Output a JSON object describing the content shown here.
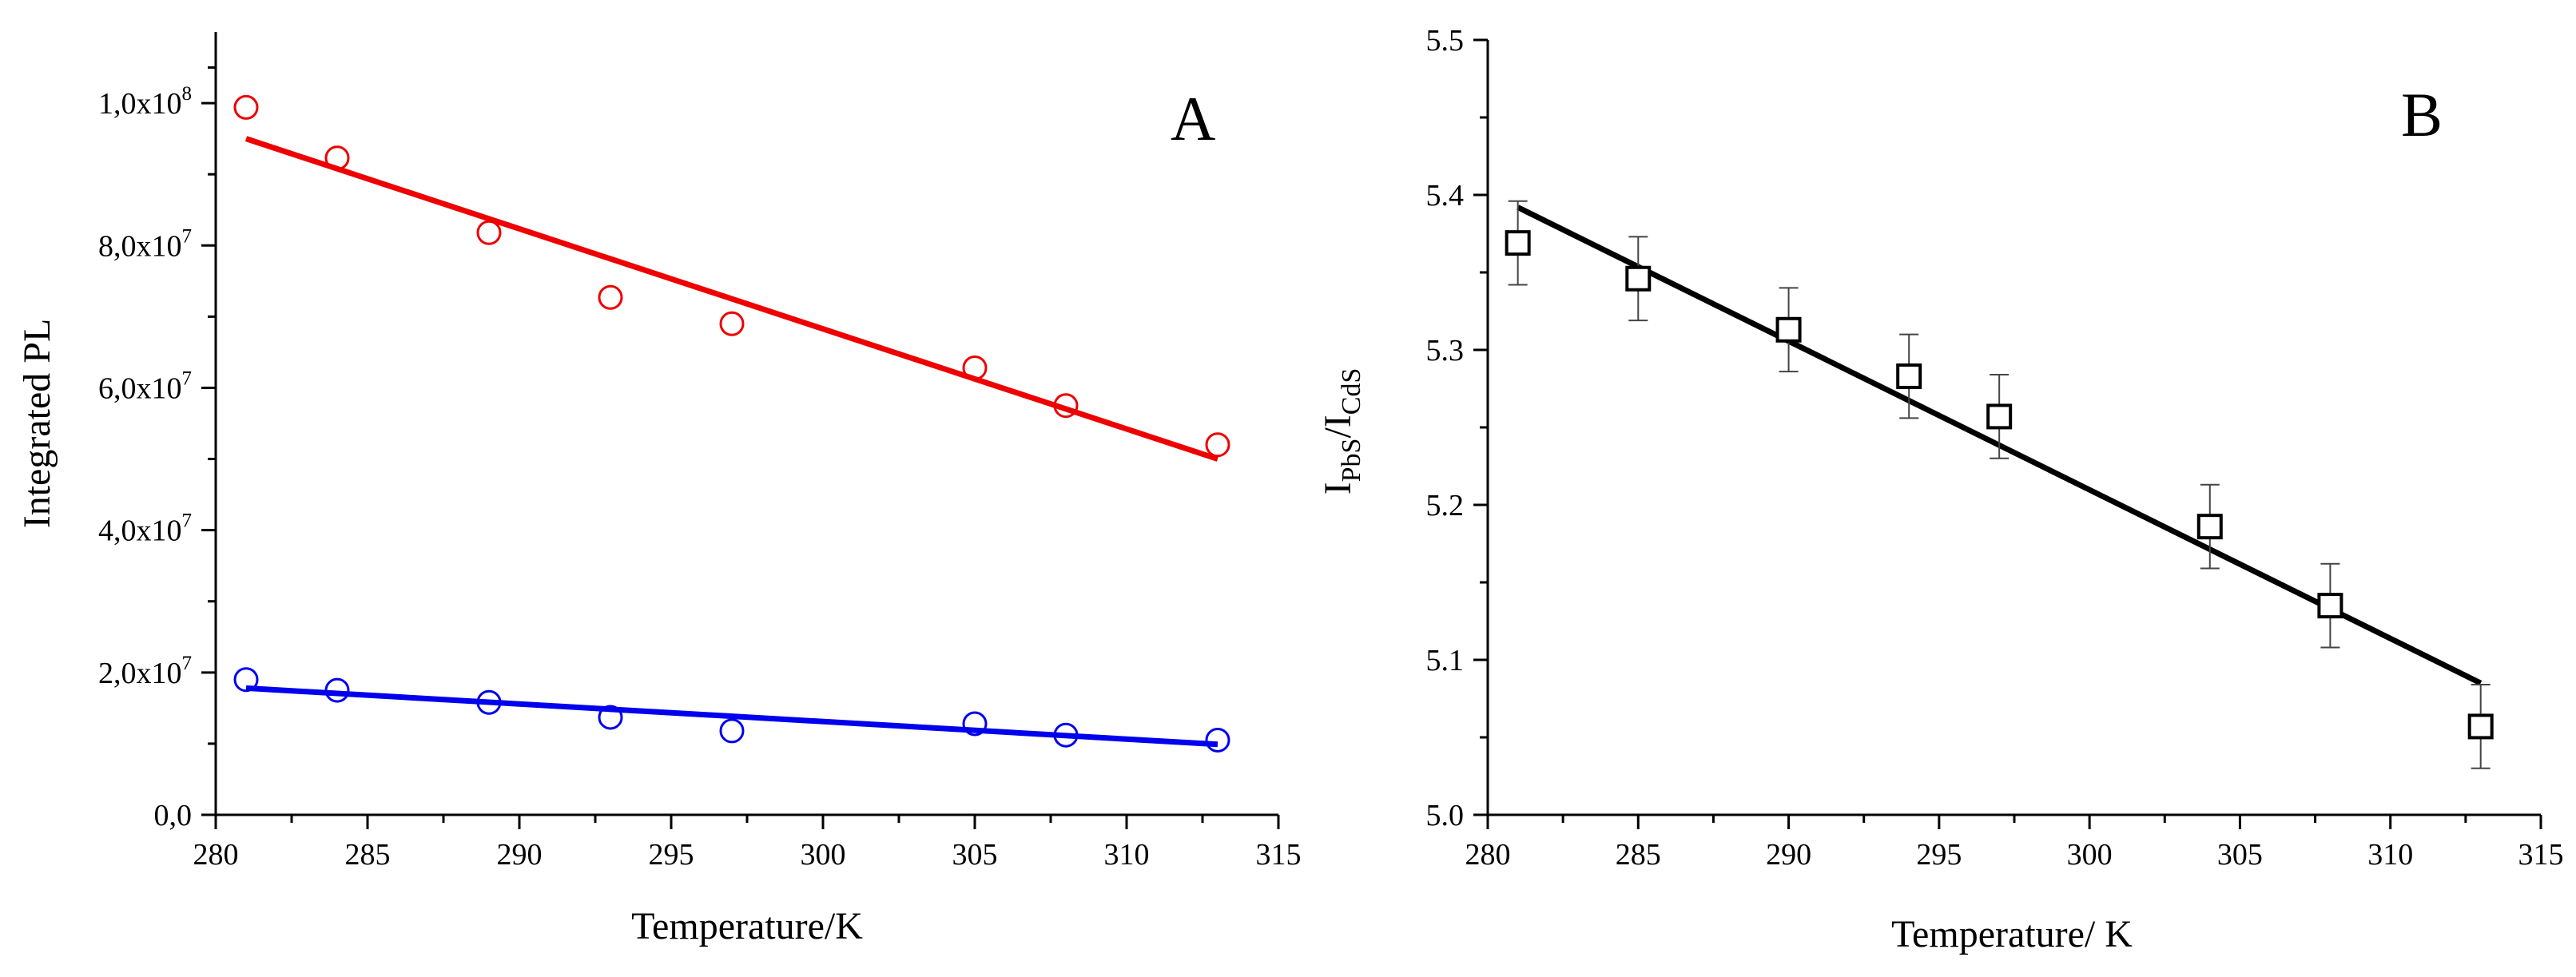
{
  "colors": {
    "red": "#ee0000",
    "blue": "#0000ee",
    "black": "#000000"
  },
  "chart_data": [
    {
      "type": "scatter",
      "panel_letter": "A",
      "xlabel": "Temperature/K",
      "ylabel": "Integrated PL",
      "xlim": [
        280,
        315
      ],
      "ylim": [
        0,
        110000000
      ],
      "xticks": [
        280,
        285,
        290,
        295,
        300,
        305,
        310,
        315
      ],
      "xtick_labels": [
        "280",
        "285",
        "290",
        "295",
        "300",
        "305",
        "310",
        "315"
      ],
      "yticks": [
        0,
        20000000,
        40000000,
        60000000,
        80000000,
        100000000
      ],
      "ytick_labels": [
        {
          "mantissa": "0,0",
          "exponent": ""
        },
        {
          "mantissa": "2,0x10",
          "exponent": "7"
        },
        {
          "mantissa": "4,0x10",
          "exponent": "7"
        },
        {
          "mantissa": "6,0x10",
          "exponent": "7"
        },
        {
          "mantissa": "8,0x10",
          "exponent": "7"
        },
        {
          "mantissa": "1,0x10",
          "exponent": "8"
        }
      ],
      "series": [
        {
          "name": "red series",
          "color": "#ee0000",
          "marker": "circle",
          "x": [
            281,
            284,
            289,
            293,
            297,
            305,
            308,
            313
          ],
          "y": [
            99400000,
            92300000,
            81800000,
            72700000,
            69000000,
            62800000,
            57500000,
            52000000
          ],
          "fit": {
            "x": [
              281,
              313
            ],
            "y": [
              95000000,
              50000000
            ]
          }
        },
        {
          "name": "blue series",
          "color": "#0000ee",
          "marker": "circle",
          "x": [
            281,
            284,
            289,
            293,
            297,
            305,
            308,
            313
          ],
          "y": [
            19000000,
            17500000,
            15800000,
            13700000,
            11800000,
            12800000,
            11200000,
            10500000
          ],
          "fit": {
            "x": [
              281,
              313
            ],
            "y": [
              17800000,
              9900000
            ]
          }
        }
      ]
    },
    {
      "type": "scatter",
      "panel_letter": "B",
      "xlabel": "Temperature/ K",
      "ylabel": {
        "I1": "I",
        "sub1": "PbS",
        "slash": "/",
        "I2": "I",
        "sub2": "CdS"
      },
      "xlim": [
        280,
        315
      ],
      "ylim": [
        5.0,
        5.5
      ],
      "xticks": [
        280,
        285,
        290,
        295,
        300,
        305,
        310,
        315
      ],
      "xtick_labels": [
        "280",
        "285",
        "290",
        "295",
        "300",
        "305",
        "310",
        "315"
      ],
      "yticks": [
        5.0,
        5.1,
        5.2,
        5.3,
        5.4,
        5.5
      ],
      "ytick_labels": [
        "5.0",
        "5.1",
        "5.2",
        "5.3",
        "5.4",
        "5.5"
      ],
      "series": [
        {
          "name": "ratio",
          "color": "#000000",
          "marker": "square",
          "x": [
            281,
            285,
            290,
            294,
            297,
            304,
            308,
            313
          ],
          "y": [
            5.369,
            5.346,
            5.313,
            5.283,
            5.257,
            5.186,
            5.135,
            5.057
          ],
          "err": [
            0.027,
            0.027,
            0.027,
            0.027,
            0.027,
            0.027,
            0.027,
            0.027
          ],
          "fit": {
            "x": [
              281,
              313
            ],
            "y": [
              5.392,
              5.085
            ]
          }
        }
      ]
    }
  ]
}
